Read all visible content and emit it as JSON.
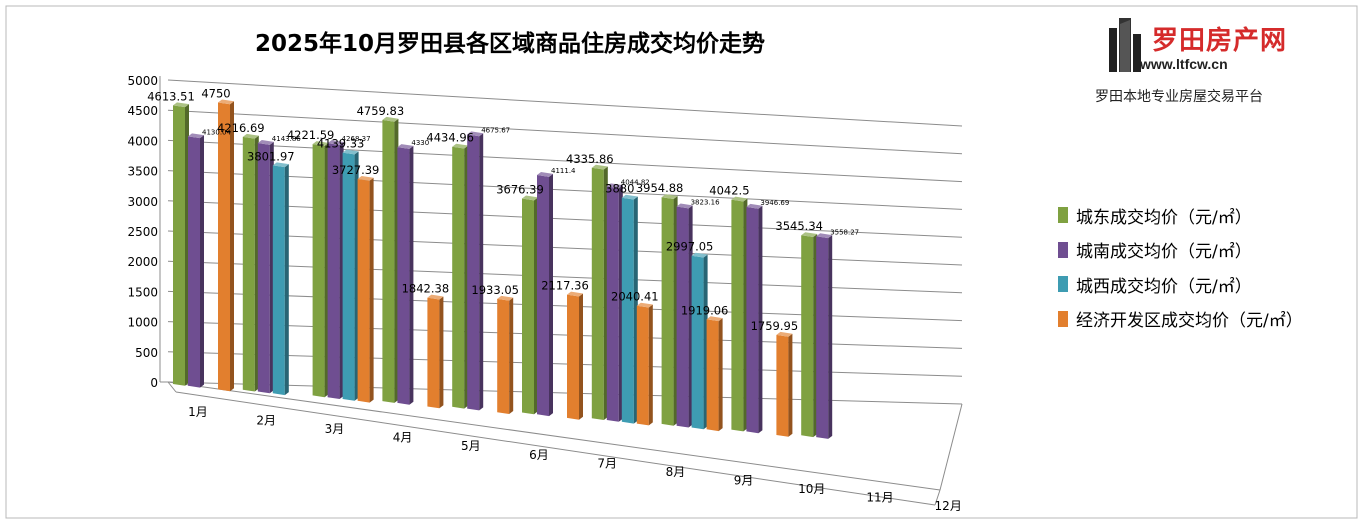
{
  "header": {
    "title": "2025年10月罗田县各区域商品住房成交均价走势"
  },
  "logo": {
    "name": "罗田房产网",
    "url": "www.ltfcw.cn",
    "slogan": "罗田本地专业房屋交易平台"
  },
  "chart_data": {
    "type": "bar",
    "style": "3d-clustered-column",
    "title": "2025年10月罗田县各区域商品住房成交均价走势",
    "categories": [
      "1月",
      "2月",
      "3月",
      "4月",
      "5月",
      "6月",
      "7月",
      "8月",
      "9月",
      "10月",
      "11月",
      "12月"
    ],
    "ylim": [
      0,
      5000
    ],
    "yticks": [
      "0",
      "500",
      "1000",
      "1500",
      "2000",
      "2500",
      "3000",
      "3500",
      "4000",
      "4500",
      "5000"
    ],
    "grid": true,
    "legend_position": "right",
    "series": [
      {
        "name": "城东成交均价（元/㎡）",
        "color": "#7fa141",
        "values": [
          4613.51,
          4216.69,
          4221.59,
          4759.83,
          4434.96,
          3676.39,
          4335.86,
          3954.88,
          4042.5,
          3545.34,
          null,
          null
        ],
        "labels": [
          "4613.51",
          "4216.69",
          "4221.59",
          "4759.83",
          "4434.96",
          "3676.39",
          "4335.86",
          "3954.88",
          "4042.5",
          "3545.34",
          "",
          ""
        ]
      },
      {
        "name": "城南成交均价（元/㎡）",
        "color": "#6f4e91",
        "values": [
          4130.04,
          4143.86,
          4268.37,
          4330,
          4675.67,
          4111.4,
          4044.82,
          3823.16,
          3946.69,
          3558.27,
          null,
          null
        ],
        "labels": [
          "4130.04",
          "4143.86",
          "4268.37",
          "4330",
          "4675.67",
          "4111.4",
          "4044.82",
          "3823.16",
          "3946.69",
          "3558.27",
          "",
          ""
        ]
      },
      {
        "name": "城西成交均价（元/㎡）",
        "color": "#3e9cb2",
        "values": [
          null,
          3801.97,
          4139.33,
          null,
          null,
          null,
          3880,
          2997.05,
          null,
          null,
          null,
          null
        ],
        "labels": [
          "",
          "3801.97",
          "4139.33",
          "",
          "",
          "",
          "3880",
          "2997.05",
          "",
          "",
          "",
          ""
        ]
      },
      {
        "name": "经济开发区成交均价（元/㎡）",
        "color": "#e27f2e",
        "values": [
          4750,
          null,
          3727.39,
          1842.38,
          1933.05,
          2117.36,
          2040.41,
          1919.06,
          1759.95,
          null,
          null,
          null
        ],
        "labels": [
          "4750",
          "",
          "3727.39",
          "1842.38",
          "1933.05",
          "2117.36",
          "2040.41",
          "1919.06",
          "1759.95",
          "",
          "",
          ""
        ]
      }
    ]
  }
}
